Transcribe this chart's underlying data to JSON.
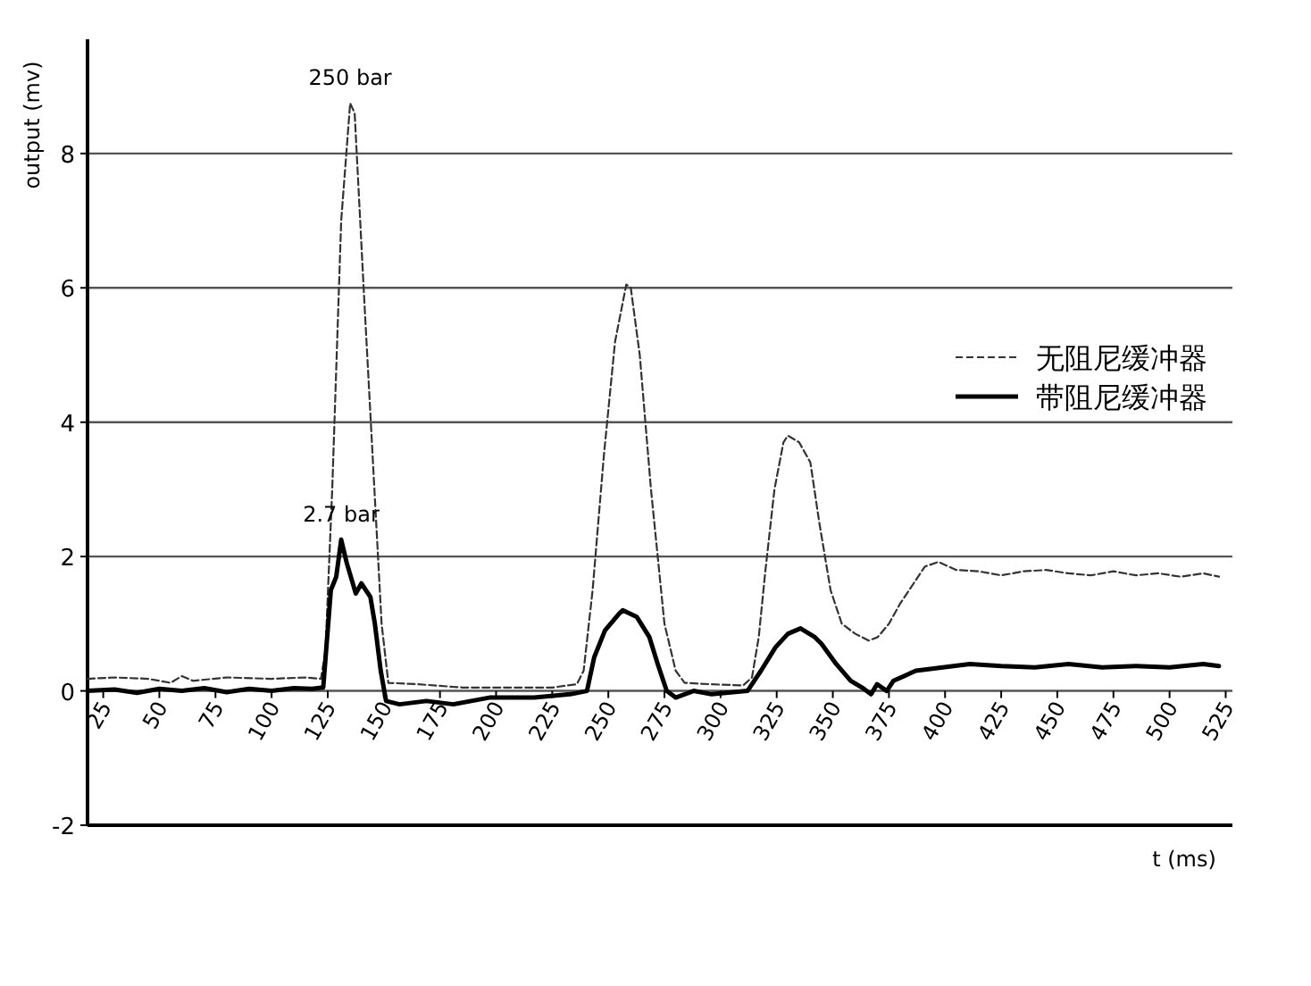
{
  "chart_data": {
    "type": "line",
    "xlabel": "t (ms)",
    "ylabel": "output (mv)",
    "xlim": [
      18,
      528
    ],
    "ylim": [
      -2,
      9.7
    ],
    "xticks": [
      25,
      50,
      75,
      100,
      125,
      150,
      175,
      200,
      225,
      250,
      275,
      300,
      325,
      350,
      375,
      400,
      425,
      450,
      475,
      500,
      525
    ],
    "yticks": [
      -2,
      0,
      2,
      4,
      6,
      8
    ],
    "grid": "y",
    "legend": "right",
    "annotations": [
      {
        "text": "250 bar",
        "x": 135,
        "y": 8.75
      },
      {
        "text": "2.7 bar",
        "x": 131,
        "y": 2.25
      }
    ],
    "series": [
      {
        "name": "无阻尼缓冲器",
        "color": "#333333",
        "line_style": "dashed",
        "x": [
          18,
          30,
          45,
          55,
          60,
          65,
          80,
          100,
          115,
          122,
          124,
          127,
          131,
          135,
          137,
          141,
          145,
          149,
          152,
          165,
          185,
          205,
          225,
          236,
          239,
          243,
          248,
          253,
          258,
          260,
          264,
          269,
          275,
          280,
          284,
          295,
          310,
          314,
          317,
          320,
          324,
          328,
          330,
          335,
          340,
          344,
          349,
          354,
          360,
          366,
          370,
          375,
          380,
          386,
          391,
          397,
          405,
          415,
          425,
          435,
          445,
          455,
          465,
          475,
          485,
          495,
          505,
          515,
          522
        ],
        "values": [
          0.18,
          0.2,
          0.18,
          0.12,
          0.22,
          0.15,
          0.2,
          0.18,
          0.2,
          0.18,
          0.6,
          3.0,
          7.0,
          8.75,
          8.6,
          6.0,
          3.5,
          1.0,
          0.12,
          0.1,
          0.05,
          0.05,
          0.05,
          0.1,
          0.3,
          1.5,
          3.5,
          5.2,
          6.05,
          6.0,
          5.0,
          3.0,
          1.0,
          0.3,
          0.12,
          0.1,
          0.08,
          0.2,
          0.8,
          1.8,
          3.0,
          3.7,
          3.8,
          3.7,
          3.4,
          2.5,
          1.5,
          1.0,
          0.85,
          0.75,
          0.8,
          1.0,
          1.3,
          1.6,
          1.85,
          1.92,
          1.8,
          1.78,
          1.72,
          1.78,
          1.8,
          1.75,
          1.72,
          1.78,
          1.72,
          1.75,
          1.7,
          1.75,
          1.7
        ]
      },
      {
        "name": "带阻尼缓冲器",
        "color": "#000000",
        "line_style": "solid",
        "x": [
          18,
          30,
          40,
          50,
          60,
          70,
          80,
          90,
          100,
          110,
          118,
          123,
          126.4,
          128.8,
          131,
          133.5,
          137.5,
          140,
          144,
          146,
          148.6,
          151,
          157,
          169,
          181,
          197,
          217,
          233,
          240.5,
          243.7,
          248.5,
          254.8,
          256.4,
          262.7,
          268.3,
          272,
          276,
          280,
          288,
          296,
          312,
          318,
          324.5,
          330,
          335.6,
          342,
          345,
          351.5,
          358,
          363,
          367,
          369.7,
          374,
          377,
          387,
          399,
          411,
          425,
          440,
          455,
          470,
          485,
          500,
          515,
          522
        ],
        "values": [
          0.0,
          0.02,
          -0.03,
          0.03,
          0.0,
          0.04,
          -0.02,
          0.03,
          0.0,
          0.04,
          0.03,
          0.05,
          1.5,
          1.7,
          2.25,
          1.9,
          1.45,
          1.6,
          1.4,
          1.0,
          0.3,
          -0.15,
          -0.2,
          -0.15,
          -0.2,
          -0.1,
          -0.1,
          -0.05,
          0.0,
          0.5,
          0.9,
          1.15,
          1.2,
          1.1,
          0.8,
          0.4,
          0.0,
          -0.1,
          0.0,
          -0.05,
          0.0,
          0.3,
          0.65,
          0.85,
          0.93,
          0.8,
          0.7,
          0.4,
          0.15,
          0.05,
          -0.05,
          0.1,
          0.0,
          0.15,
          0.3,
          0.35,
          0.4,
          0.37,
          0.35,
          0.4,
          0.35,
          0.37,
          0.35,
          0.4,
          0.37
        ]
      }
    ]
  }
}
